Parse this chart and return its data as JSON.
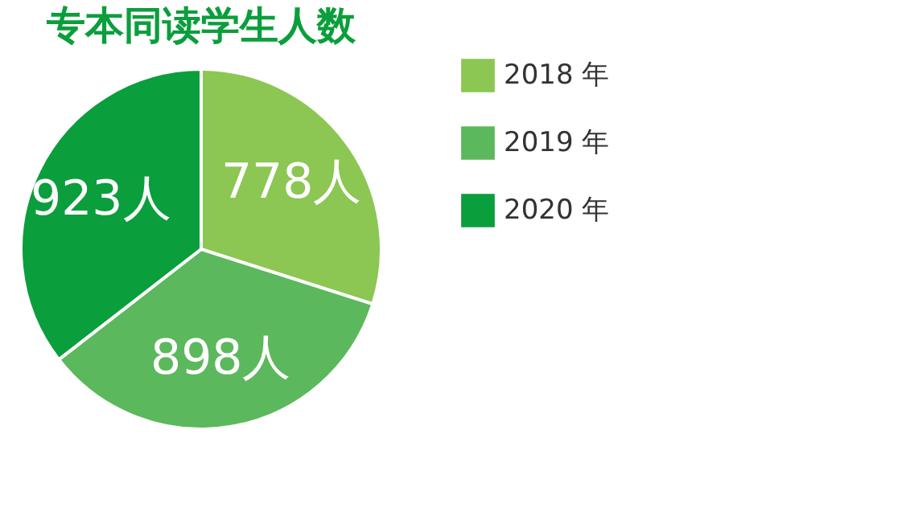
{
  "chart_data": {
    "type": "pie",
    "title": "专本同读学生人数",
    "categories": [
      "2018 年",
      "2019 年",
      "2020 年"
    ],
    "values": [
      778,
      898,
      923
    ],
    "colors": [
      "#8cc653",
      "#5cb85c",
      "#0b9e3c"
    ],
    "value_labels": [
      "778人",
      "898人",
      "923人"
    ],
    "legend": "right"
  }
}
